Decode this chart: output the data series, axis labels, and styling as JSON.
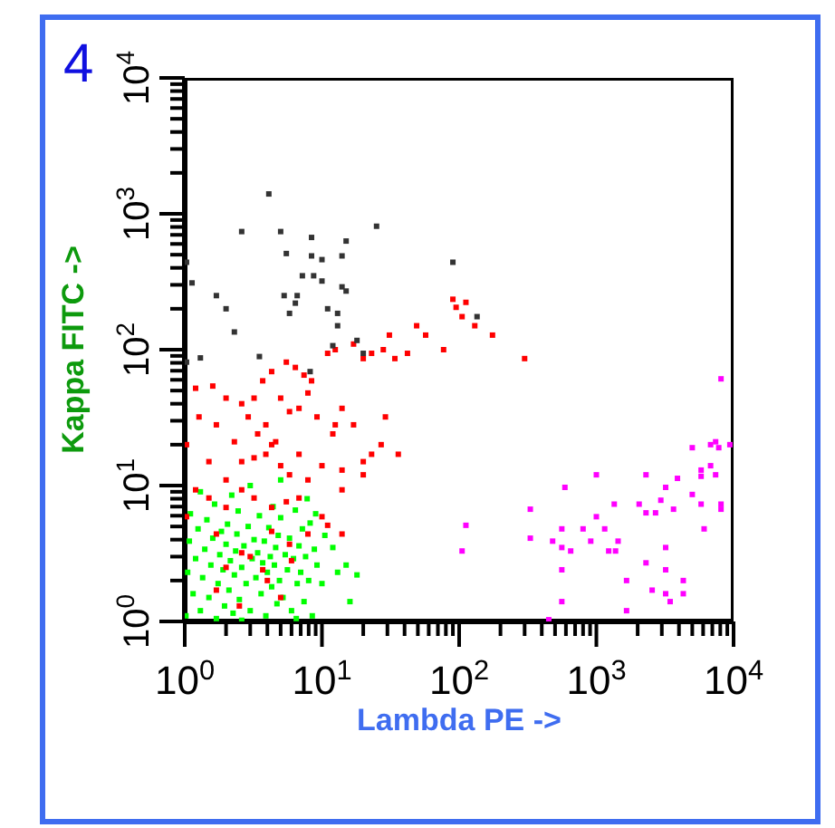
{
  "chart_data": {
    "type": "scatter",
    "xlabel": "Lambda PE ->",
    "ylabel": "Kappa FITC ->",
    "annotations": [
      "4"
    ],
    "log": "xy",
    "marker": "square",
    "xlim": [
      1,
      10000
    ],
    "ylim": [
      1,
      10000
    ],
    "xticks": [
      {
        "value": 1,
        "label": "10$^{0}$"
      },
      {
        "value": 2,
        "label": null
      },
      {
        "value": 3,
        "label": null
      },
      {
        "value": 4,
        "label": null
      },
      {
        "value": 5,
        "label": null
      },
      {
        "value": 6,
        "label": null
      },
      {
        "value": 7,
        "label": null
      },
      {
        "value": 8,
        "label": null
      },
      {
        "value": 9,
        "label": null
      },
      {
        "value": 10,
        "label": "10$^{1}$"
      },
      {
        "value": 20,
        "label": null
      },
      {
        "value": 30,
        "label": null
      },
      {
        "value": 40,
        "label": null
      },
      {
        "value": 50,
        "label": null
      },
      {
        "value": 60,
        "label": null
      },
      {
        "value": 70,
        "label": null
      },
      {
        "value": 80,
        "label": null
      },
      {
        "value": 90,
        "label": null
      },
      {
        "value": 100,
        "label": "10$^{2}$"
      },
      {
        "value": 200,
        "label": null
      },
      {
        "value": 300,
        "label": null
      },
      {
        "value": 400,
        "label": null
      },
      {
        "value": 500,
        "label": null
      },
      {
        "value": 600,
        "label": null
      },
      {
        "value": 700,
        "label": null
      },
      {
        "value": 800,
        "label": null
      },
      {
        "value": 900,
        "label": null
      },
      {
        "value": 1000,
        "label": "10$^{3}$"
      },
      {
        "value": 2000,
        "label": null
      },
      {
        "value": 3000,
        "label": null
      },
      {
        "value": 4000,
        "label": null
      },
      {
        "value": 5000,
        "label": null
      },
      {
        "value": 6000,
        "label": null
      },
      {
        "value": 7000,
        "label": null
      },
      {
        "value": 8000,
        "label": null
      },
      {
        "value": 9000,
        "label": null
      },
      {
        "value": 10000,
        "label": "10$^{4}$"
      }
    ],
    "yticks": [
      {
        "value": 1,
        "label": "10$^{0}$"
      },
      {
        "value": 2,
        "label": null
      },
      {
        "value": 3,
        "label": null
      },
      {
        "value": 4,
        "label": null
      },
      {
        "value": 5,
        "label": null
      },
      {
        "value": 6,
        "label": null
      },
      {
        "value": 7,
        "label": null
      },
      {
        "value": 8,
        "label": null
      },
      {
        "value": 9,
        "label": null
      },
      {
        "value": 10,
        "label": "10$^{1}$"
      },
      {
        "value": 20,
        "label": null
      },
      {
        "value": 30,
        "label": null
      },
      {
        "value": 40,
        "label": null
      },
      {
        "value": 50,
        "label": null
      },
      {
        "value": 60,
        "label": null
      },
      {
        "value": 70,
        "label": null
      },
      {
        "value": 80,
        "label": null
      },
      {
        "value": 90,
        "label": null
      },
      {
        "value": 100,
        "label": "10$^{2}$"
      },
      {
        "value": 200,
        "label": null
      },
      {
        "value": 300,
        "label": null
      },
      {
        "value": 400,
        "label": null
      },
      {
        "value": 500,
        "label": null
      },
      {
        "value": 600,
        "label": null
      },
      {
        "value": 700,
        "label": null
      },
      {
        "value": 800,
        "label": null
      },
      {
        "value": 900,
        "label": null
      },
      {
        "value": 1000,
        "label": "10$^{3}$"
      },
      {
        "value": 2000,
        "label": null
      },
      {
        "value": 3000,
        "label": null
      },
      {
        "value": 4000,
        "label": null
      },
      {
        "value": 5000,
        "label": null
      },
      {
        "value": 6000,
        "label": null
      },
      {
        "value": 7000,
        "label": null
      },
      {
        "value": 8000,
        "label": null
      },
      {
        "value": 9000,
        "label": null
      },
      {
        "value": 10000,
        "label": "10$^{4}$"
      }
    ],
    "series": [
      {
        "color": "#00ff00",
        "x": [
          1.02,
          1.05,
          1.08,
          1.1,
          1.15,
          1.2,
          1.25,
          1.3,
          1.35,
          1.4,
          1.45,
          1.5,
          1.55,
          1.6,
          1.65,
          1.7,
          1.75,
          1.8,
          1.85,
          1.9,
          1.95,
          2.0,
          2.05,
          2.1,
          2.15,
          2.2,
          2.25,
          2.3,
          2.35,
          2.4,
          2.45,
          2.5,
          2.6,
          2.7,
          2.8,
          2.9,
          3.0,
          3.1,
          3.2,
          3.3,
          3.4,
          3.5,
          3.6,
          3.7,
          3.8,
          3.9,
          4.0,
          4.1,
          4.2,
          4.3,
          4.4,
          4.5,
          4.6,
          4.7,
          4.8,
          4.9,
          5.0,
          5.2,
          5.4,
          5.6,
          5.8,
          6.0,
          6.2,
          6.4,
          6.6,
          6.8,
          7.0,
          7.2,
          7.4,
          7.6,
          7.8,
          8.0,
          8.2,
          8.5,
          8.8,
          9.2,
          10,
          10.5,
          12,
          13,
          15,
          18,
          16,
          3.0,
          5,
          1.3,
          2.6,
          6.5,
          9
        ],
        "values": [
          1.1,
          2.3,
          3.9,
          6.2,
          1.6,
          2.9,
          4.8,
          1.2,
          2.1,
          3.4,
          5.6,
          1.5,
          2.6,
          4.1,
          7.3,
          1.05,
          1.9,
          3.1,
          4.6,
          2.4,
          1.3,
          3.7,
          5.2,
          1.7,
          2.8,
          8.5,
          1.15,
          2.2,
          3.3,
          4.4,
          6.5,
          1.45,
          2.5,
          3.6,
          1.9,
          5.0,
          1.2,
          2.9,
          4.0,
          2.1,
          3.2,
          6.0,
          1.6,
          2.7,
          3.9,
          1.1,
          2.3,
          4.9,
          3.0,
          1.8,
          7.0,
          2.6,
          3.5,
          1.35,
          4.3,
          2.0,
          5.8,
          1.5,
          3.1,
          2.4,
          4.1,
          1.2,
          2.9,
          6.6,
          1.9,
          3.6,
          2.3,
          4.8,
          1.4,
          3.0,
          8.0,
          2.0,
          5.3,
          1.1,
          3.4,
          2.6,
          1.9,
          4.3,
          3.5,
          2.3,
          2.6,
          2.2,
          1.4,
          10,
          11,
          9,
          1.02,
          1.05,
          6.2
        ]
      },
      {
        "color": "#ff0000",
        "x": [
          1.2,
          1.6,
          2.0,
          2.6,
          3.2,
          3.7,
          4.3,
          5.5,
          6.4,
          7.4,
          8.4,
          11,
          12.5,
          17,
          20,
          23,
          28,
          31,
          34,
          42,
          49,
          57,
          77,
          90,
          95,
          105,
          112,
          130,
          175,
          300,
          1.27,
          1.7,
          2.3,
          2.9,
          3.4,
          3.9,
          4.3,
          5.0,
          5.8,
          6.8,
          7.9,
          9.2,
          12.5,
          14,
          17,
          23,
          27,
          29,
          36,
          2.0,
          2.6,
          3.2,
          3.9,
          4.6,
          5.0,
          5.8,
          6.8,
          7.9,
          10,
          12,
          14,
          20,
          1.03,
          1.2,
          1.5,
          2.0,
          2.6,
          3.2,
          4.3,
          5.5,
          6.8,
          10,
          14,
          20,
          11,
          14,
          1.7,
          2.6,
          4.3,
          5.8,
          3.7,
          1.7,
          7.9,
          1.5,
          1.03,
          3,
          2,
          4,
          5,
          2.5,
          6
        ],
        "values": [
          52,
          54,
          44,
          40,
          44,
          59,
          69,
          81,
          74,
          65,
          59,
          94,
          100,
          110,
          86,
          94,
          100,
          128,
          86,
          94,
          150,
          128,
          100,
          235,
          205,
          175,
          223,
          150,
          128,
          86,
          32,
          28,
          21,
          32,
          24,
          28,
          20,
          44,
          35,
          37,
          48,
          32,
          28,
          37,
          28,
          17,
          20,
          32,
          17,
          11,
          15,
          16,
          17,
          21,
          14,
          12,
          17,
          11,
          14,
          24,
          13,
          12,
          5.9,
          9.3,
          8.1,
          6.9,
          9.3,
          8.1,
          6.9,
          7.6,
          8.1,
          5.9,
          9.3,
          15,
          5.1,
          4.4,
          4.4,
          3.2,
          4.6,
          3.7,
          2.4,
          1.7,
          4.4,
          15,
          20,
          3,
          2.5,
          2,
          1.5,
          1.3,
          2.8
        ]
      },
      {
        "color": "#333333",
        "x": [
          4.1,
          1.03,
          1.13,
          2.6,
          1.7,
          2.0,
          2.3,
          5.3,
          6.4,
          5.5,
          5.0,
          5.8,
          7.2,
          8.4,
          8.4,
          10,
          8.7,
          10,
          11,
          13,
          12,
          14,
          15,
          15,
          14,
          25,
          90,
          135,
          3.5,
          1.3,
          6.6,
          8.2,
          18,
          13,
          1.03,
          20
        ],
        "values": [
          1400,
          440,
          310,
          740,
          250,
          200,
          135,
          250,
          220,
          510,
          740,
          185,
          350,
          670,
          490,
          460,
          350,
          320,
          200,
          150,
          107,
          290,
          270,
          630,
          490,
          810,
          440,
          175,
          89,
          87,
          250,
          69,
          117,
          185,
          81,
          94
        ]
      },
      {
        "color": "#ff00ff",
        "x": [
          8100,
          5000,
          6800,
          7400,
          7800,
          9400,
          5800,
          6800,
          7400,
          5800,
          1000,
          2300,
          590,
          3200,
          3900,
          5000,
          5800,
          8100,
          8100,
          1350,
          2050,
          2950,
          2300,
          2700,
          3650,
          330,
          1000,
          112,
          800,
          560,
          1150,
          6100,
          330,
          105,
          480,
          560,
          650,
          910,
          1230,
          1440,
          1380,
          3200,
          560,
          2300,
          3200,
          1660,
          4300,
          2550,
          3200,
          3450,
          4300,
          560,
          1660,
          450
        ],
        "values": [
          61,
          19,
          20,
          21,
          19,
          20,
          13,
          14,
          12,
          11.7,
          12,
          12,
          9.7,
          9.7,
          11.3,
          8.6,
          7.3,
          7.3,
          6.7,
          7.3,
          7.3,
          7.8,
          6.3,
          6.3,
          6.7,
          6.7,
          5.9,
          5.1,
          4.8,
          4.8,
          4.8,
          4.8,
          4.1,
          3.3,
          3.9,
          3.5,
          3.3,
          3.9,
          3.3,
          3.9,
          3.3,
          3.5,
          2.4,
          2.7,
          2.4,
          2.0,
          2.0,
          1.7,
          1.6,
          1.4,
          1.6,
          1.4,
          1.2,
          1.03
        ]
      }
    ]
  }
}
